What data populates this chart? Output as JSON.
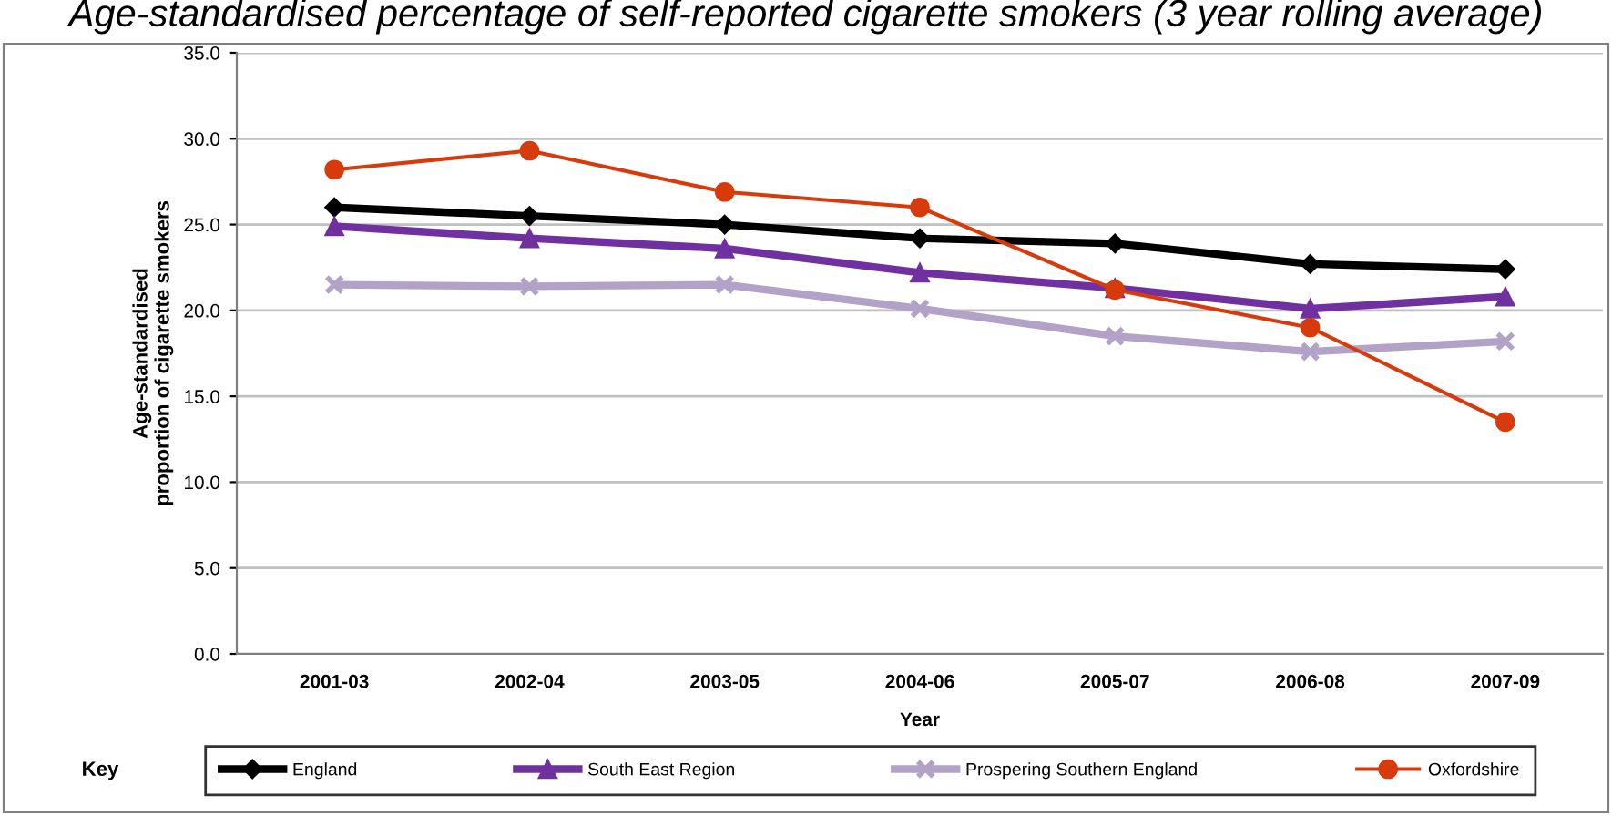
{
  "chart_data": {
    "type": "line",
    "title": "Age-standardised percentage of self-reported cigarette smokers (3 year rolling average)",
    "xlabel": "Year",
    "ylabel": "Age-standardised\nproportion of cigarette smokers",
    "legend_title": "Key",
    "categories": [
      "2001-03",
      "2002-04",
      "2003-05",
      "2004-06",
      "2005-07",
      "2006-08",
      "2007-09"
    ],
    "ylim": [
      0,
      35
    ],
    "yticks": [
      {
        "value": 0,
        "label": "0.0"
      },
      {
        "value": 5,
        "label": "5.0"
      },
      {
        "value": 10,
        "label": "10.0"
      },
      {
        "value": 15,
        "label": "15.0"
      },
      {
        "value": 20,
        "label": "20.0"
      },
      {
        "value": 25,
        "label": "25.0"
      },
      {
        "value": 30,
        "label": "30.0"
      },
      {
        "value": 35,
        "label": "35.0"
      }
    ],
    "grid": "y",
    "legend": "bottom",
    "series": [
      {
        "name": "England",
        "color": "#000000",
        "marker": "diamond",
        "values": [
          26.0,
          25.5,
          25.0,
          24.2,
          23.9,
          22.7,
          22.4
        ]
      },
      {
        "name": "South East Region",
        "color": "#7030a0",
        "marker": "triangle",
        "values": [
          24.9,
          24.2,
          23.6,
          22.2,
          21.3,
          20.1,
          20.8
        ]
      },
      {
        "name": "Prospering Southern England",
        "color": "#b3a2c7",
        "marker": "cross",
        "values": [
          21.5,
          21.4,
          21.5,
          20.1,
          18.5,
          17.6,
          18.2
        ]
      },
      {
        "name": "Oxfordshire",
        "color": "#d73b0c",
        "marker": "circle",
        "values": [
          28.2,
          29.3,
          26.9,
          26.0,
          21.2,
          19.0,
          13.5
        ]
      }
    ]
  }
}
